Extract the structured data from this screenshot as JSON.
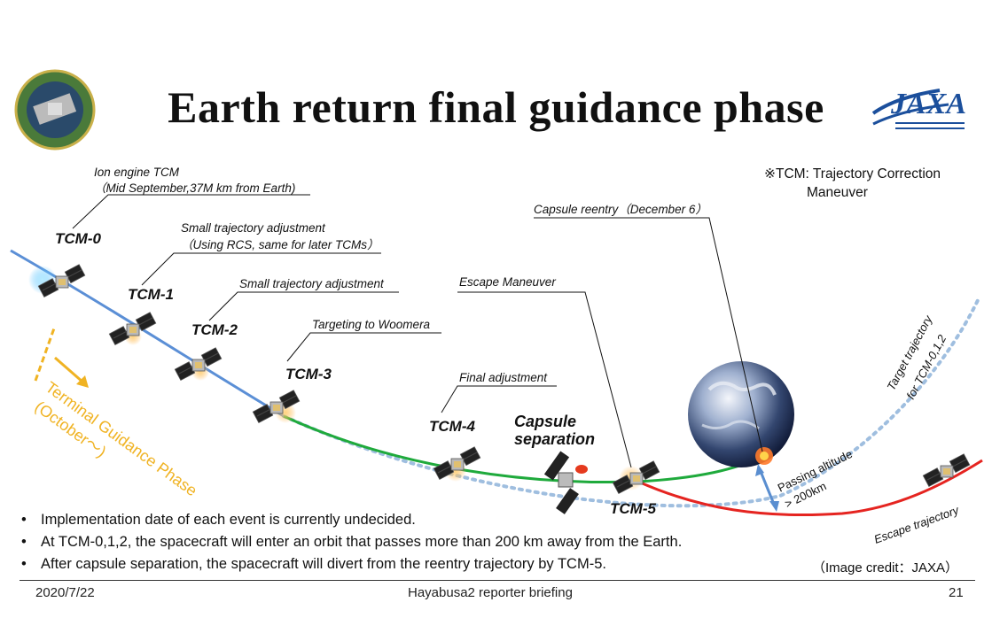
{
  "title": "Earth return final guidance phase",
  "logo": {
    "emblem_name": "hayabusa2-mission-emblem",
    "agency_logo": "JAXA"
  },
  "note": {
    "line1": "※TCM: Trajectory Correction",
    "line2": "Maneuver"
  },
  "events": {
    "tcm0": {
      "label": "TCM-0",
      "desc1": "Ion engine TCM",
      "desc2": "（Mid September,37M km from Earth)"
    },
    "tcm1": {
      "label": "TCM-1",
      "desc1": "Small trajectory adjustment",
      "desc2": "（Using RCS, same for later TCMs）"
    },
    "tcm2": {
      "label": "TCM-2",
      "desc1": "Small trajectory adjustment"
    },
    "tcm3": {
      "label": "TCM-3",
      "desc1": "Targeting to Woomera"
    },
    "tcm4": {
      "label": "TCM-4",
      "desc1": "Final adjustment"
    },
    "capsule": {
      "line1": "Capsule",
      "line2": "separation"
    },
    "tcm5": {
      "label": "TCM-5",
      "desc1": "Escape Maneuver"
    },
    "reentry": {
      "desc1": "Capsule reentry（December 6）"
    }
  },
  "terminal_phase": {
    "line1": "Terminal Guidance Phase",
    "line2": "(October～)"
  },
  "target_trajectory": {
    "line1": "Target trajectory",
    "line2": "for TCM-0,1,2"
  },
  "passing_altitude": {
    "line1": "Passing altitude",
    "line2": "> 200km"
  },
  "escape_trajectory": "Escape trajectory",
  "bullets": [
    "Implementation date of each event is currently undecided.",
    "At TCM-0,1,2, the spacecraft will enter an orbit that passes more than 200 km away from the Earth.",
    "After capsule separation, the spacecraft will divert from the reentry trajectory by TCM-5."
  ],
  "bullet_symbol": "•",
  "credit": "（Image credit：JAXA）",
  "footer": {
    "date": "2020/7/22",
    "event": "Hayabusa2 reporter briefing",
    "page": "21"
  },
  "colors": {
    "approach": "#5b8fd6",
    "reentry": "#1faa3c",
    "escape": "#e52420",
    "target_dotted": "#9fbedf",
    "terminal_phase": "#f0b323",
    "arrow": "#5a8ed0"
  }
}
